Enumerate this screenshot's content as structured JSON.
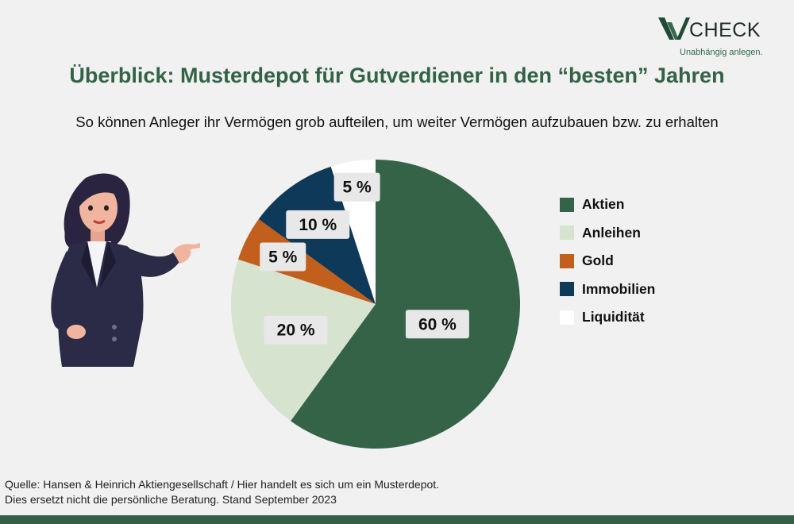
{
  "logo": {
    "text": "CHECK",
    "tagline": "Unabhängig anlegen."
  },
  "title": "Überblick: Musterdepot für Gutverdiener in den “besten” Jahren",
  "subtitle": "So können Anleger ihr Vermögen grob aufteilen, um weiter Vermögen aufzubauen bzw. zu erhalten",
  "chart_data": {
    "type": "pie",
    "title": "",
    "slices": [
      {
        "label": "Aktien",
        "value": 60,
        "display": "60 %",
        "color": "#356348"
      },
      {
        "label": "Anleihen",
        "value": 20,
        "display": "20 %",
        "color": "#d6e3cf"
      },
      {
        "label": "Gold",
        "value": 5,
        "display": "5 %",
        "color": "#c25f1c"
      },
      {
        "label": "Immobilien",
        "value": 10,
        "display": "10 %",
        "color": "#0f3958"
      },
      {
        "label": "Liquidität",
        "value": 5,
        "display": "5 %",
        "color": "#ffffff"
      }
    ],
    "legend_position": "right"
  },
  "footer": {
    "line1": "Quelle: Hansen & Heinrich Aktiengesellschaft  / Hier handelt es sich um ein Musterdepot.",
    "line2": "Dies ersetzt nicht die persönliche Beratung. Stand September 2023"
  },
  "colors": {
    "accent": "#326347",
    "bar": "#355f46",
    "background": "#f1f1f1"
  }
}
